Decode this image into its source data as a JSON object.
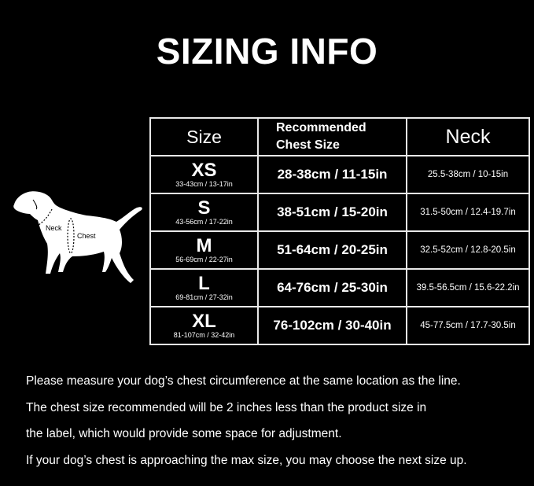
{
  "title": "SIZING INFO",
  "table": {
    "headers": {
      "size": "Size",
      "chest_line1": "Recommended",
      "chest_line2": "Chest Size",
      "neck": "Neck"
    },
    "rows": [
      {
        "size": "XS",
        "product": "33-43cm / 13-17in",
        "chest": "28-38cm / 11-15in",
        "neck": "25.5-38cm / 10-15in"
      },
      {
        "size": "S",
        "product": "43-56cm / 17-22in",
        "chest": "38-51cm / 15-20in",
        "neck": "31.5-50cm / 12.4-19.7in"
      },
      {
        "size": "M",
        "product": "56-69cm / 22-27in",
        "chest": "51-64cm / 20-25in",
        "neck": "32.5-52cm / 12.8-20.5in"
      },
      {
        "size": "L",
        "product": "69-81cm / 27-32in",
        "chest": "64-76cm / 25-30in",
        "neck": "39.5-56.5cm / 15.6-22.2in"
      },
      {
        "size": "XL",
        "product": "81-107cm / 32-42in",
        "chest": "76-102cm / 30-40in",
        "neck": "45-77.5cm / 17.7-30.5in"
      }
    ]
  },
  "dog": {
    "neck_label": "Neck",
    "chest_label": "Chest"
  },
  "notes": [
    "Please measure your dog’s chest circumference at the same location as the line.",
    "The chest size recommended will be 2 inches less than the product size in",
    "the label, which would provide some space for adjustment.",
    "If your dog’s chest is approaching the max size, you may choose the next size up."
  ]
}
